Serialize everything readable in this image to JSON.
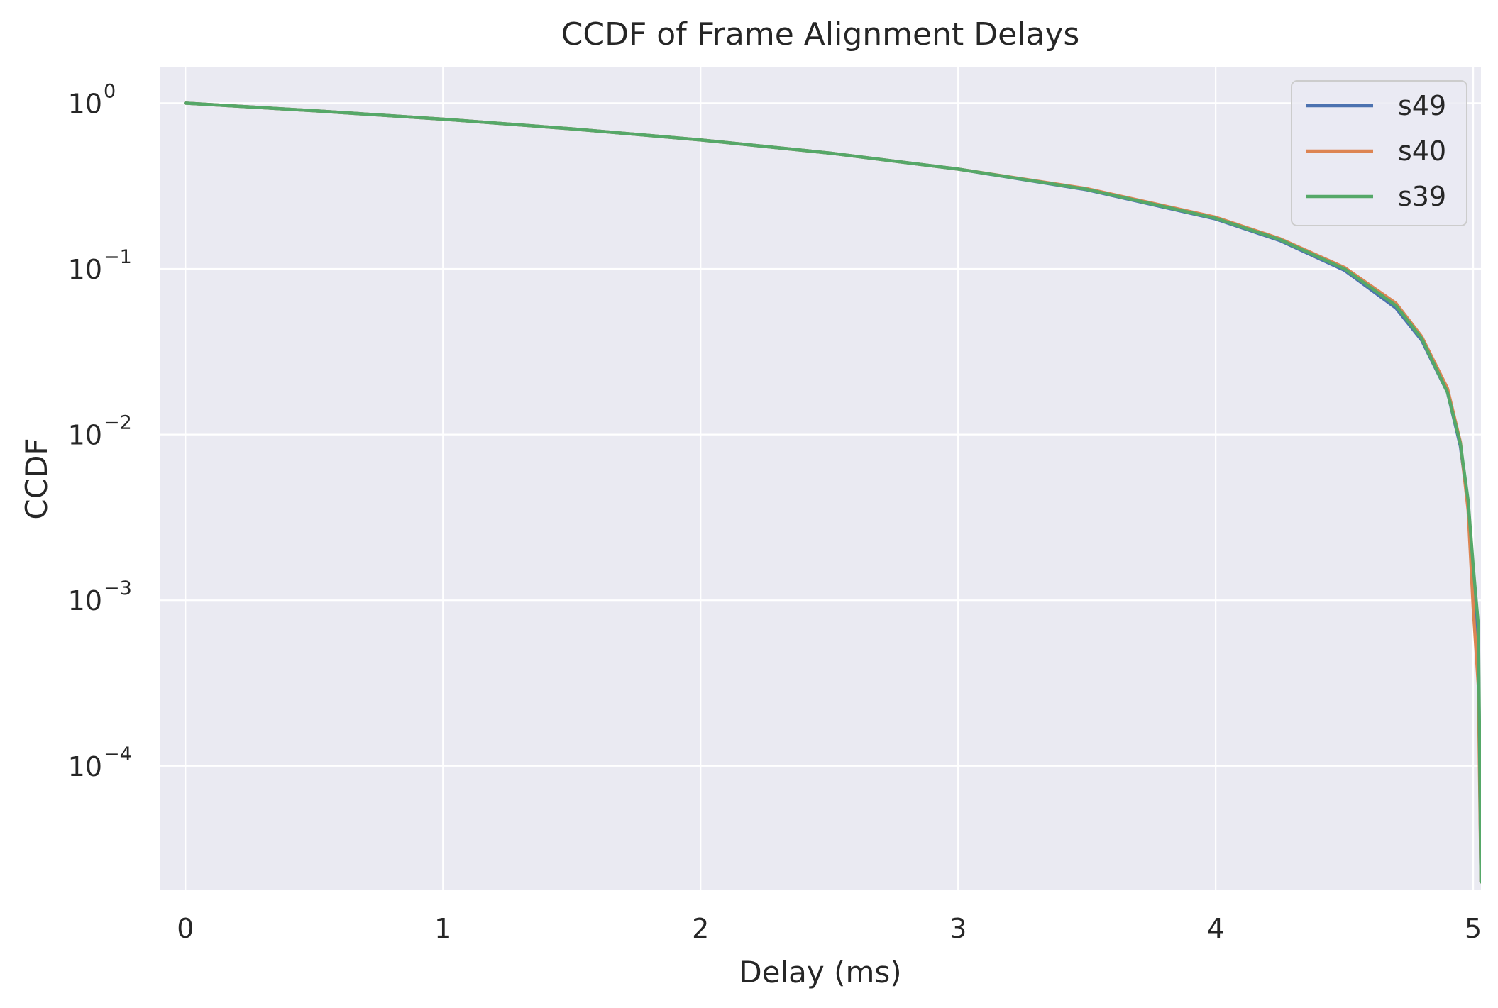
{
  "chart_data": {
    "type": "line",
    "title": "CCDF of Frame Alignment Delays",
    "xlabel": "Delay (ms)",
    "ylabel": "CCDF",
    "xlim": [
      -0.1,
      5.03
    ],
    "ylim_log10": [
      -4.75,
      0.22
    ],
    "y_scale": "log",
    "grid": true,
    "legend_position": "top-right",
    "x_ticks": [
      {
        "value": 0,
        "label": "0"
      },
      {
        "value": 1,
        "label": "1"
      },
      {
        "value": 2,
        "label": "2"
      },
      {
        "value": 3,
        "label": "3"
      },
      {
        "value": 4,
        "label": "4"
      },
      {
        "value": 5,
        "label": "5"
      }
    ],
    "y_ticks": [
      {
        "exp": 0,
        "base": "10",
        "sup": "0"
      },
      {
        "exp": -1,
        "base": "10",
        "sup": "−1"
      },
      {
        "exp": -2,
        "base": "10",
        "sup": "−2"
      },
      {
        "exp": -3,
        "base": "10",
        "sup": "−3"
      },
      {
        "exp": -4,
        "base": "10",
        "sup": "−4"
      }
    ],
    "series": [
      {
        "name": "s49",
        "color": "#4c72b0",
        "x": [
          0,
          0.5,
          1.0,
          1.5,
          2.0,
          2.5,
          3.0,
          3.5,
          4.0,
          4.25,
          4.5,
          4.7,
          4.8,
          4.9,
          4.95,
          4.98,
          5.0,
          5.02,
          5.03
        ],
        "y": [
          1.0,
          0.9,
          0.8,
          0.7,
          0.6,
          0.5,
          0.4,
          0.3,
          0.2,
          0.148,
          0.098,
          0.058,
          0.037,
          0.018,
          0.0085,
          0.0038,
          0.0013,
          0.0005,
          2e-05
        ]
      },
      {
        "name": "s40",
        "color": "#dd8452",
        "x": [
          0,
          0.5,
          1.0,
          1.5,
          2.0,
          2.5,
          3.0,
          3.5,
          4.0,
          4.25,
          4.5,
          4.7,
          4.8,
          4.9,
          4.95,
          4.98,
          5.0,
          5.02,
          5.03
        ],
        "y": [
          1.0,
          0.9,
          0.8,
          0.7,
          0.6,
          0.5,
          0.4,
          0.305,
          0.205,
          0.152,
          0.102,
          0.062,
          0.039,
          0.019,
          0.009,
          0.0035,
          0.0009,
          0.0003,
          2e-05
        ]
      },
      {
        "name": "s39",
        "color": "#55a868",
        "x": [
          0,
          0.5,
          1.0,
          1.5,
          2.0,
          2.5,
          3.0,
          3.5,
          4.0,
          4.25,
          4.5,
          4.7,
          4.8,
          4.9,
          4.95,
          4.98,
          5.0,
          5.02,
          5.03
        ],
        "y": [
          1.0,
          0.9,
          0.8,
          0.7,
          0.6,
          0.5,
          0.4,
          0.302,
          0.202,
          0.15,
          0.1,
          0.06,
          0.038,
          0.018,
          0.0088,
          0.004,
          0.0016,
          0.0007,
          2e-05
        ]
      }
    ]
  },
  "colors": {
    "plot_background": "#eaeaf2",
    "grid": "#ffffff",
    "text": "#262626"
  }
}
